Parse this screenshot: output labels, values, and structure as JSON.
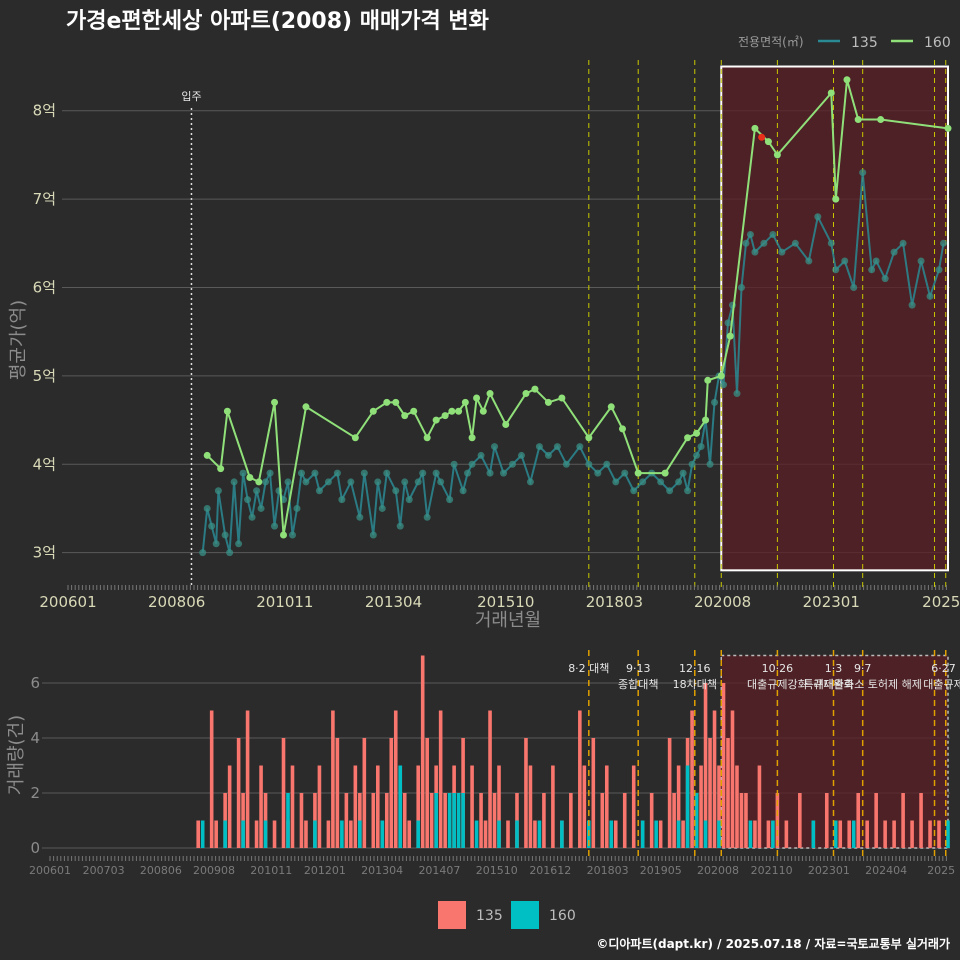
{
  "title": "가경e편한세상 아파트(2008) 매매가격 변화",
  "footer": "©디아파트(dapt.kr) / 2025.07.18 / 자료=국토교통부 실거래가",
  "colors": {
    "background": "#2b2b2b",
    "grid": "#5a5a5a",
    "s135_line": "#2a8a93",
    "s135_point": "#3a8f86",
    "s160": "#90e07a",
    "bar135": "#f8766d",
    "bar160": "#00bfc4",
    "policy": "#c8c800",
    "highlight_fill": "#5a1f24",
    "red_dot": "#e8301a"
  },
  "chart_data": [
    {
      "type": "line",
      "title": "가경e편한세상 아파트(2008) 매매가격 변화",
      "xlabel": "거래년월",
      "ylabel": "평균가(억)",
      "ylim": [
        2.6,
        8.8
      ],
      "x_tick_labels": [
        "200601",
        "200806",
        "201011",
        "201304",
        "201510",
        "201803",
        "202008",
        "202301",
        "2025"
      ],
      "y_tick_labels": [
        "3억",
        "4억",
        "5억",
        "6억",
        "7억",
        "8억"
      ],
      "y_ticks": [
        3,
        4,
        5,
        6,
        7,
        8
      ],
      "legend_title": "전용면적(㎡)",
      "legend_position": "top-right",
      "annotations": {
        "move_in": {
          "label": "입주",
          "x": 2008.75
        },
        "highlight": {
          "x": [
            2020.55,
            2025.6
          ],
          "y": [
            2.8,
            8.5
          ]
        },
        "policy_lines": [
          2017.6,
          2018.7,
          2019.96,
          2020.55,
          2021.8,
          2023.05,
          2023.7,
          2025.3,
          2025.55
        ]
      },
      "series": [
        {
          "name": "135",
          "x": [
            2009.0,
            2009.1,
            2009.2,
            2009.3,
            2009.35,
            2009.5,
            2009.6,
            2009.7,
            2009.8,
            2009.9,
            2010.0,
            2010.1,
            2010.2,
            2010.3,
            2010.4,
            2010.5,
            2010.6,
            2010.7,
            2010.8,
            2010.9,
            2011.0,
            2011.1,
            2011.2,
            2011.3,
            2011.5,
            2011.6,
            2011.8,
            2012.0,
            2012.1,
            2012.3,
            2012.5,
            2012.6,
            2012.8,
            2012.9,
            2013.0,
            2013.1,
            2013.3,
            2013.4,
            2013.5,
            2013.6,
            2013.8,
            2013.9,
            2014.0,
            2014.2,
            2014.3,
            2014.5,
            2014.6,
            2014.8,
            2014.9,
            2015.0,
            2015.2,
            2015.4,
            2015.5,
            2015.7,
            2015.9,
            2016.1,
            2016.3,
            2016.5,
            2016.7,
            2016.9,
            2017.1,
            2017.4,
            2017.6,
            2017.8,
            2018.0,
            2018.2,
            2018.4,
            2018.6,
            2018.8,
            2019.0,
            2019.2,
            2019.4,
            2019.6,
            2019.7,
            2019.8,
            2019.9,
            2020.0,
            2020.1,
            2020.2,
            2020.3,
            2020.4,
            2020.5,
            2020.6,
            2020.7,
            2020.8,
            2020.9,
            2021.0,
            2021.1,
            2021.2,
            2021.3,
            2021.5,
            2021.7,
            2021.9,
            2022.2,
            2022.5,
            2022.7,
            2023.0,
            2023.1,
            2023.3,
            2023.5,
            2023.7,
            2023.9,
            2024.0,
            2024.2,
            2024.4,
            2024.6,
            2024.8,
            2025.0,
            2025.2,
            2025.4,
            2025.5
          ],
          "values": [
            3.0,
            3.5,
            3.3,
            3.1,
            3.7,
            3.2,
            3.0,
            3.8,
            3.1,
            3.9,
            3.6,
            3.4,
            3.7,
            3.5,
            3.8,
            3.9,
            3.3,
            3.7,
            3.6,
            3.8,
            3.2,
            3.5,
            3.9,
            3.8,
            3.9,
            3.7,
            3.8,
            3.9,
            3.6,
            3.8,
            3.4,
            3.9,
            3.2,
            3.8,
            3.5,
            3.9,
            3.7,
            3.3,
            3.8,
            3.6,
            3.8,
            3.9,
            3.4,
            3.9,
            3.8,
            3.6,
            4.0,
            3.7,
            3.9,
            4.0,
            4.1,
            3.9,
            4.2,
            3.9,
            4.0,
            4.1,
            3.8,
            4.2,
            4.1,
            4.2,
            4.0,
            4.2,
            4.0,
            3.9,
            4.0,
            3.8,
            3.9,
            3.7,
            3.8,
            3.9,
            3.8,
            3.7,
            3.8,
            3.9,
            3.7,
            4.0,
            4.1,
            4.2,
            4.5,
            4.0,
            4.7,
            5.0,
            4.9,
            5.6,
            5.8,
            4.8,
            6.0,
            6.5,
            6.6,
            6.4,
            6.5,
            6.6,
            6.4,
            6.5,
            6.3,
            6.8,
            6.5,
            6.2,
            6.3,
            6.0,
            7.3,
            6.2,
            6.3,
            6.1,
            6.4,
            6.5,
            5.8,
            6.3,
            5.9,
            6.2,
            6.5
          ]
        },
        {
          "name": "160",
          "x": [
            2009.1,
            2009.4,
            2009.55,
            2010.05,
            2010.25,
            2010.6,
            2010.8,
            2011.3,
            2012.4,
            2012.8,
            2013.1,
            2013.3,
            2013.5,
            2013.7,
            2014.0,
            2014.2,
            2014.4,
            2014.55,
            2014.7,
            2014.85,
            2015.0,
            2015.1,
            2015.25,
            2015.4,
            2015.75,
            2016.2,
            2016.4,
            2016.7,
            2017.0,
            2017.6,
            2018.1,
            2018.35,
            2018.7,
            2019.3,
            2019.8,
            2020.0,
            2020.2,
            2020.25,
            2020.55,
            2020.75,
            2021.3,
            2021.6,
            2021.8,
            2023.0,
            2023.1,
            2023.35,
            2023.6,
            2024.1,
            2025.6
          ],
          "values": [
            4.1,
            3.95,
            4.6,
            3.85,
            3.8,
            4.7,
            3.2,
            4.65,
            4.3,
            4.6,
            4.7,
            4.7,
            4.55,
            4.6,
            4.3,
            4.5,
            4.55,
            4.6,
            4.6,
            4.7,
            4.3,
            4.75,
            4.6,
            4.8,
            4.45,
            4.8,
            4.85,
            4.7,
            4.75,
            4.3,
            4.65,
            4.4,
            3.9,
            3.9,
            4.3,
            4.35,
            4.5,
            4.95,
            5.0,
            5.45,
            7.8,
            7.65,
            7.5,
            8.2,
            7.0,
            8.35,
            7.9,
            7.9,
            7.8
          ]
        }
      ]
    },
    {
      "type": "bar",
      "xlabel": "",
      "ylabel": "거래량(건)",
      "ylim": [
        0,
        7.2
      ],
      "y_ticks": [
        0,
        2,
        4,
        6
      ],
      "y_tick_labels": [
        "0",
        "2",
        "4",
        "6"
      ],
      "x_tick_labels": [
        "200601",
        "200703",
        "200806",
        "200908",
        "201011",
        "201201",
        "201304",
        "201407",
        "201510",
        "201612",
        "201803",
        "201905",
        "202008",
        "202110",
        "202301",
        "202404",
        "2025"
      ],
      "legend_position": "bottom",
      "policy_labels": [
        {
          "x": 2017.6,
          "lines": [
            "8·2 대책"
          ]
        },
        {
          "x": 2018.7,
          "lines": [
            "9·13",
            "종합대책"
          ]
        },
        {
          "x": 2019.96,
          "lines": [
            "12·16",
            "18차대책"
          ]
        },
        {
          "x": 2021.8,
          "lines": [
            "10·26",
            "대출규제강화"
          ]
        },
        {
          "x": 2023.05,
          "lines": [
            "1·3",
            "규제완화"
          ]
        },
        {
          "x": 2023.7,
          "lines": [
            "9·7",
            "특례대출축소 토허제 해제"
          ]
        },
        {
          "x": 2025.5,
          "lines": [
            "6·27",
            "대출규제"
          ]
        }
      ],
      "highlight": {
        "x": [
          2020.55,
          2025.6
        ]
      },
      "series": [
        {
          "name": "135",
          "x": [
            2008.9,
            2009.2,
            2009.3,
            2009.5,
            2009.6,
            2009.8,
            2009.9,
            2010.0,
            2010.2,
            2010.3,
            2010.4,
            2010.6,
            2010.8,
            2010.9,
            2011.0,
            2011.2,
            2011.3,
            2011.5,
            2011.6,
            2011.8,
            2011.9,
            2012.0,
            2012.2,
            2012.3,
            2012.4,
            2012.5,
            2012.6,
            2012.8,
            2012.9,
            2013.0,
            2013.1,
            2013.2,
            2013.3,
            2013.4,
            2013.5,
            2013.6,
            2013.8,
            2013.9,
            2014.0,
            2014.1,
            2014.2,
            2014.3,
            2014.4,
            2014.6,
            2014.8,
            2015.0,
            2015.2,
            2015.3,
            2015.4,
            2015.5,
            2015.6,
            2015.8,
            2016.0,
            2016.2,
            2016.3,
            2016.4,
            2016.6,
            2016.8,
            2017.0,
            2017.2,
            2017.4,
            2017.5,
            2017.7,
            2017.9,
            2018.0,
            2018.2,
            2018.4,
            2018.6,
            2018.8,
            2019.0,
            2019.2,
            2019.4,
            2019.5,
            2019.6,
            2019.7,
            2019.8,
            2019.9,
            2020.0,
            2020.1,
            2020.2,
            2020.3,
            2020.4,
            2020.5,
            2020.6,
            2020.7,
            2020.8,
            2020.9,
            2021.0,
            2021.1,
            2021.3,
            2021.4,
            2021.6,
            2021.8,
            2022.0,
            2022.3,
            2022.6,
            2022.9,
            2023.2,
            2023.4,
            2023.6,
            2023.8,
            2024.0,
            2024.2,
            2024.4,
            2024.6,
            2024.8,
            2025.0,
            2025.2,
            2025.4
          ],
          "values": [
            1,
            5,
            1,
            2,
            3,
            4,
            2,
            5,
            1,
            3,
            2,
            1,
            4,
            1,
            3,
            2,
            1,
            2,
            3,
            1,
            5,
            4,
            2,
            1,
            3,
            2,
            4,
            2,
            3,
            1,
            2,
            4,
            5,
            3,
            2,
            1,
            3,
            7,
            4,
            2,
            3,
            5,
            2,
            3,
            4,
            3,
            2,
            1,
            5,
            2,
            3,
            1,
            2,
            4,
            3,
            1,
            2,
            3,
            1,
            2,
            5,
            3,
            4,
            2,
            3,
            1,
            2,
            3,
            1,
            2,
            1,
            4,
            2,
            3,
            1,
            4,
            5,
            2,
            3,
            6,
            4,
            5,
            3,
            6,
            4,
            5,
            3,
            2,
            2,
            1,
            3,
            1,
            2,
            1,
            2,
            1,
            2,
            1,
            1,
            2,
            1,
            2,
            1,
            1,
            2,
            1,
            2,
            1,
            1
          ]
        },
        {
          "name": "160",
          "x": [
            2009.0,
            2009.5,
            2009.9,
            2010.4,
            2010.9,
            2011.5,
            2012.1,
            2012.5,
            2013.0,
            2013.4,
            2013.8,
            2014.2,
            2014.5,
            2014.6,
            2014.7,
            2014.8,
            2015.1,
            2015.6,
            2016.0,
            2016.5,
            2017.0,
            2017.6,
            2018.1,
            2018.8,
            2019.1,
            2019.6,
            2019.8,
            2020.0,
            2020.2,
            2020.5,
            2021.2,
            2021.7,
            2022.6,
            2023.1,
            2023.5,
            2025.6
          ],
          "values": [
            1,
            1,
            1,
            1,
            2,
            1,
            1,
            1,
            1,
            3,
            1,
            2,
            2,
            2,
            2,
            2,
            1,
            1,
            1,
            1,
            1,
            1,
            1,
            1,
            1,
            1,
            3,
            2,
            1,
            1,
            1,
            1,
            1,
            1,
            1,
            1
          ]
        }
      ]
    }
  ]
}
